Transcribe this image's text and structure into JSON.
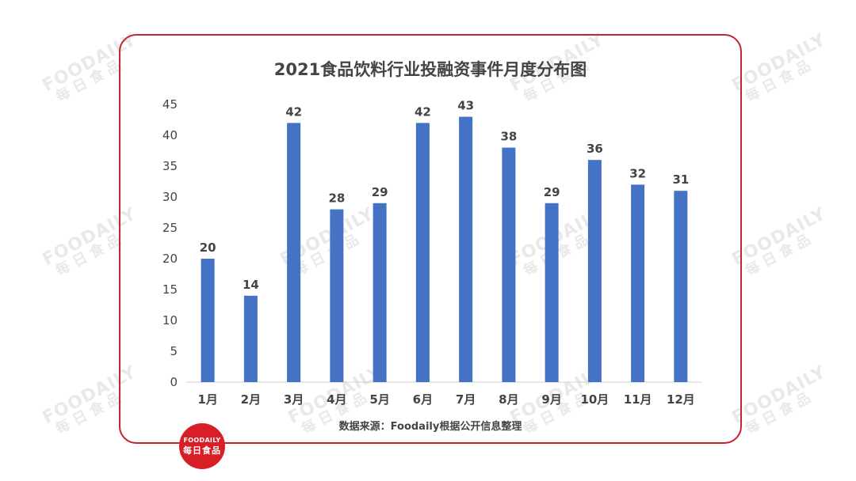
{
  "watermark": {
    "text_en": "FOODAILY",
    "text_cn": "每日食品"
  },
  "logo": {
    "text_en": "FOODAILY",
    "text_cn": "每日食品"
  },
  "source_note": "数据来源：Foodaily根据公开信息整理",
  "colors": {
    "bar": "#4472c4",
    "frame": "#c8232c",
    "logo_bg": "#d81e27",
    "text": "#444444"
  },
  "chart_data": {
    "type": "bar",
    "title": "2021食品饮料行业投融资事件月度分布图",
    "xlabel": "",
    "ylabel": "",
    "categories": [
      "1月",
      "2月",
      "3月",
      "4月",
      "5月",
      "6月",
      "7月",
      "8月",
      "9月",
      "10月",
      "11月",
      "12月"
    ],
    "values": [
      20,
      14,
      42,
      28,
      29,
      42,
      43,
      38,
      29,
      36,
      32,
      31
    ],
    "ylim": [
      0,
      45
    ],
    "yticks": [
      0,
      5,
      10,
      15,
      20,
      25,
      30,
      35,
      40,
      45
    ],
    "grid": false,
    "legend": "none",
    "data_labels": true
  }
}
